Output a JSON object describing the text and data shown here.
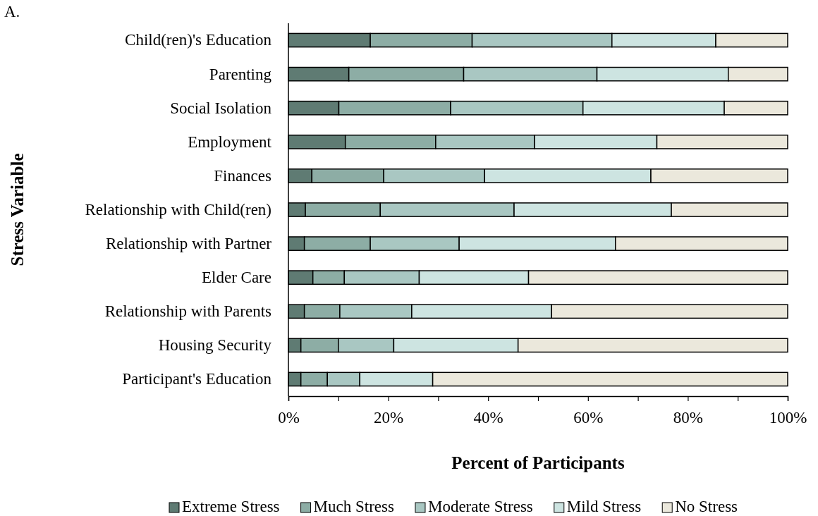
{
  "chart_data": {
    "type": "bar",
    "orientation": "horizontal",
    "stacked": true,
    "xlabel": "Percent of Participants",
    "ylabel": "Stress Variable",
    "annotations": [
      "A."
    ],
    "categories": [
      "Child(ren)'s Education",
      "Parenting",
      "Social Isolation",
      "Employment",
      "Finances",
      "Relationship with Child(ren)",
      "Relationship with Partner",
      "Elder Care",
      "Relationship with Parents",
      "Housing Security",
      "Participant's Education"
    ],
    "series": [
      {
        "name": "Extreme Stress",
        "color": "#5f7b73",
        "values": [
          16.4,
          12.1,
          10.1,
          11.4,
          4.7,
          3.4,
          3.2,
          4.9,
          3.2,
          2.5,
          2.5
        ]
      },
      {
        "name": "Much Stress",
        "color": "#8dada5",
        "values": [
          20.4,
          23.0,
          22.4,
          18.1,
          14.4,
          15.0,
          13.2,
          6.3,
          7.1,
          7.5,
          5.3
        ]
      },
      {
        "name": "Moderate Stress",
        "color": "#a9c7c2",
        "values": [
          28.0,
          26.7,
          26.5,
          19.8,
          20.2,
          26.8,
          17.8,
          15.0,
          14.4,
          11.1,
          6.5
        ]
      },
      {
        "name": "Mild Stress",
        "color": "#cde4e1",
        "values": [
          20.8,
          26.3,
          28.3,
          24.5,
          33.3,
          31.5,
          31.3,
          21.9,
          28.0,
          24.9,
          14.6
        ]
      },
      {
        "name": "No Stress",
        "color": "#ebe8dc",
        "values": [
          14.4,
          11.9,
          12.7,
          26.2,
          27.4,
          23.3,
          34.5,
          51.9,
          47.3,
          54.0,
          71.1
        ]
      }
    ],
    "xlim": [
      0,
      100
    ],
    "xticks": [
      {
        "value": 0,
        "label": "0%"
      },
      {
        "value": 10,
        "label": null
      },
      {
        "value": 20,
        "label": "20%"
      },
      {
        "value": 30,
        "label": null
      },
      {
        "value": 40,
        "label": "40%"
      },
      {
        "value": 50,
        "label": null
      },
      {
        "value": 60,
        "label": "60%"
      },
      {
        "value": 70,
        "label": null
      },
      {
        "value": 80,
        "label": "80%"
      },
      {
        "value": 90,
        "label": null
      },
      {
        "value": 100,
        "label": "100%"
      }
    ],
    "grid": false,
    "legend": "bottom"
  }
}
